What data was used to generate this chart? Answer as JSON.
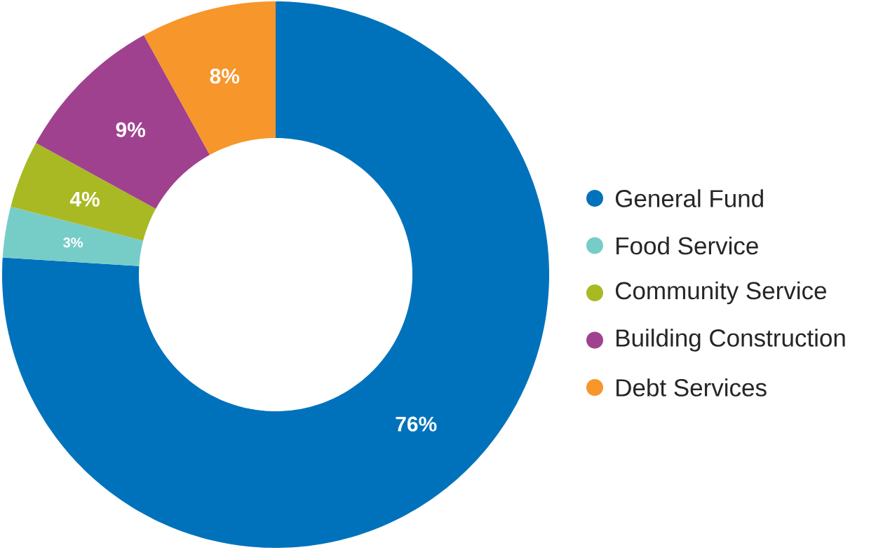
{
  "chart_data": {
    "type": "donut",
    "categories": [
      "General Fund",
      "Food Service",
      "Community Service",
      "Building Construction",
      "Debt Services"
    ],
    "values": [
      76,
      3,
      4,
      9,
      8
    ],
    "colors": [
      "#0072bc",
      "#76cdc8",
      "#a9b923",
      "#a0418f",
      "#f7962a"
    ],
    "value_labels": [
      "76%",
      "3%",
      "4%",
      "9%",
      "8%"
    ],
    "legend": "right"
  }
}
